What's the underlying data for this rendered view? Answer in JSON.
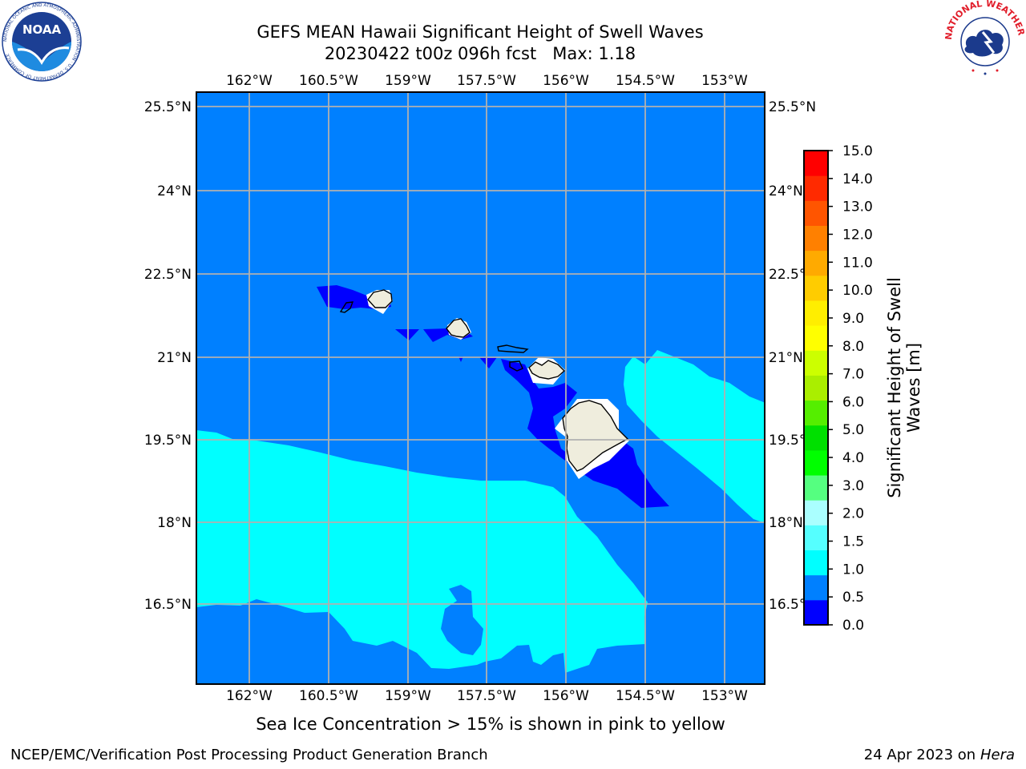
{
  "header": {
    "title_line1": "GEFS MEAN Hawaii Significant Height of Swell Waves",
    "title_line2": "20230422 t00z 096h fcst   Max: 1.18"
  },
  "logos": {
    "noaa_text": "NOAA",
    "noaa_ring_text": "NATIONAL OCEANIC AND ATMOSPHERIC ADMINISTRATION · U.S. DEPARTMENT OF COMMERCE",
    "nws_ring_text": "NATIONAL WEATHER SERVICE"
  },
  "map": {
    "lon_ticks": [
      "162°W",
      "160.5°W",
      "159°W",
      "157.5°W",
      "156°W",
      "154.5°W",
      "153°W"
    ],
    "lat_ticks": [
      "25.5°N",
      "24°N",
      "22.5°N",
      "21°N",
      "19.5°N",
      "18°N",
      "16.5°N"
    ],
    "colors": {
      "land": "#efeddd",
      "grid": "#b0b0b0",
      "ocean_0_0_5": "#0000ff",
      "ocean_0_5_1_0": "#0080ff",
      "ocean_1_0_1_5": "#00ffff"
    }
  },
  "colorbar": {
    "label": "Significant Height of Swell Waves [m]",
    "ticks": [
      "0.0",
      "0.5",
      "1.0",
      "1.5",
      "2.0",
      "3.0",
      "4.0",
      "5.0",
      "6.0",
      "7.0",
      "8.0",
      "9.0",
      "10.0",
      "11.0",
      "12.0",
      "13.0",
      "14.0",
      "15.0"
    ],
    "colors": [
      "#0000ff",
      "#0080ff",
      "#00ffff",
      "#55ffff",
      "#aaffff",
      "#55ff80",
      "#00ff00",
      "#00e000",
      "#55ee00",
      "#aaee00",
      "#ccff00",
      "#ffff00",
      "#ffee00",
      "#ffcc00",
      "#ffaa00",
      "#ff8000",
      "#ff5500",
      "#ff2a00",
      "#ff0000"
    ]
  },
  "chart_data": {
    "type": "heatmap",
    "title": "GEFS MEAN Hawaii Significant Height of Swell Waves",
    "subtitle": "20230422 t00z 096h fcst   Max: 1.18",
    "max_value": 1.18,
    "units": "m",
    "colorbar_label": "Significant Height of Swell Waves [m]",
    "colorbar_bounds": [
      0.0,
      0.5,
      1.0,
      1.5,
      2.0,
      3.0,
      4.0,
      5.0,
      6.0,
      7.0,
      8.0,
      9.0,
      10.0,
      11.0,
      12.0,
      13.0,
      14.0,
      15.0
    ],
    "lon_range": [
      "163°W",
      "152.25°W"
    ],
    "lat_range": [
      "15.25°N",
      "25.75°N"
    ],
    "grid": true,
    "regions": [
      {
        "range": "0.0-0.5",
        "where": "lee of Kauai, Oahu, Maui and Big Island"
      },
      {
        "range": "0.5-1.0",
        "where": "most of domain"
      },
      {
        "range": "1.0-1.5",
        "where": "south of ~19.5°N and east of Big Island"
      }
    ]
  },
  "footer": {
    "note": "Sea Ice Concentration > 15% is shown in pink to yellow",
    "left": "NCEP/EMC/Verification Post Processing Product Generation Branch",
    "right_prefix": "24 Apr 2023 on ",
    "right_host": "Hera"
  }
}
